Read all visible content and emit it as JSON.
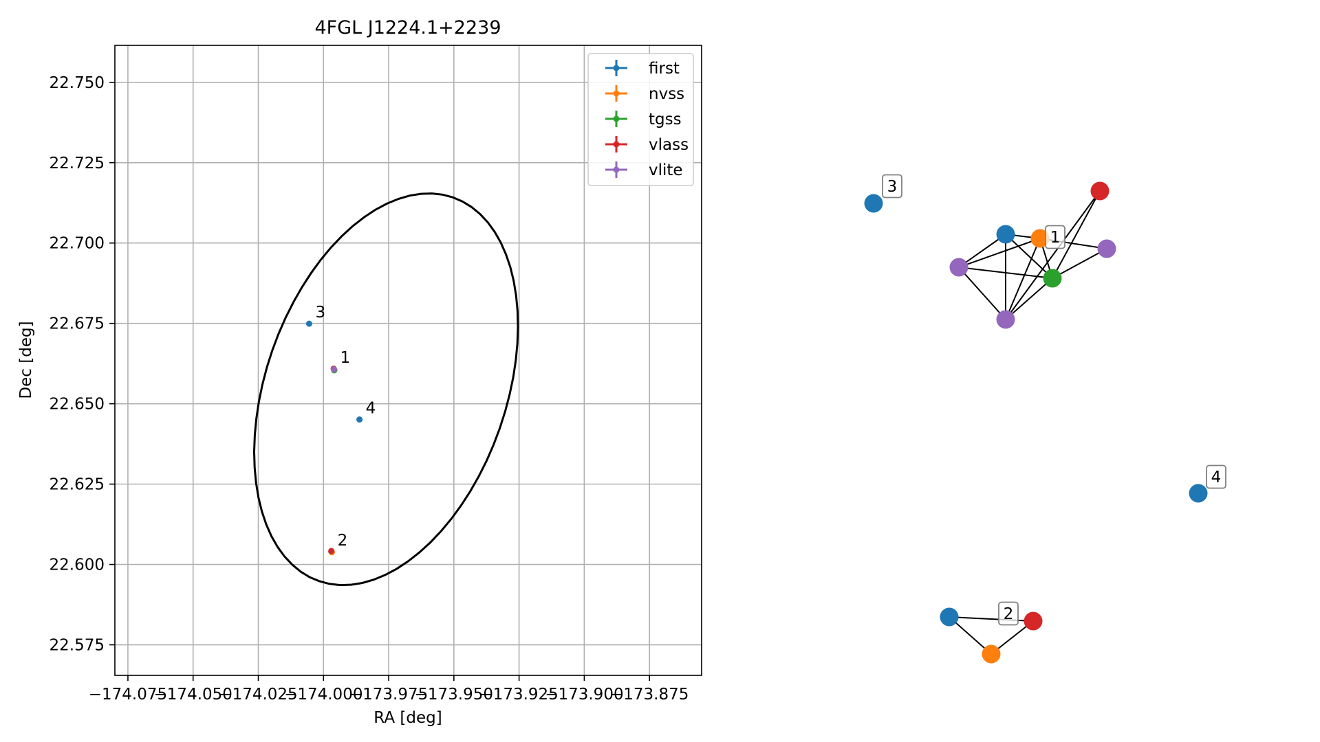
{
  "chart_data": [
    {
      "type": "scatter",
      "title": "4FGL J1224.1+2239",
      "xlabel": "RA [deg]",
      "ylabel": "Dec [deg]",
      "xlim": [
        -174.08,
        -173.855
      ],
      "ylim": [
        22.5655,
        22.7615
      ],
      "xticks": [
        -174.075,
        -174.05,
        -174.025,
        -174.0,
        -173.975,
        -173.95,
        -173.925,
        -173.9,
        -173.875
      ],
      "xtick_labels": [
        "−174.075",
        "−174.050",
        "−174.025",
        "−174.000",
        "−173.975",
        "−173.950",
        "−173.925",
        "−173.900",
        "−173.875"
      ],
      "yticks": [
        22.575,
        22.6,
        22.625,
        22.65,
        22.675,
        22.7,
        22.725,
        22.75
      ],
      "ytick_labels": [
        "22.575",
        "22.600",
        "22.625",
        "22.650",
        "22.675",
        "22.700",
        "22.725",
        "22.750"
      ],
      "grid": true,
      "legend_position": "top-right",
      "series": [
        {
          "name": "first",
          "color": "#1f77b4",
          "points": [
            {
              "x": -173.996,
              "y": 22.6608,
              "label": "1"
            },
            {
              "x": -174.0055,
              "y": 22.6749,
              "label": "3"
            },
            {
              "x": -173.9862,
              "y": 22.6451,
              "label": "4"
            },
            {
              "x": -173.997,
              "y": 22.604,
              "label": "2"
            }
          ]
        },
        {
          "name": "nvss",
          "color": "#ff7f0e",
          "points": [
            {
              "x": -173.9958,
              "y": 22.6605
            },
            {
              "x": -173.9968,
              "y": 22.6038
            }
          ]
        },
        {
          "name": "tgss",
          "color": "#2ca02c",
          "points": [
            {
              "x": -173.9959,
              "y": 22.6604
            }
          ]
        },
        {
          "name": "vlass",
          "color": "#d62728",
          "points": [
            {
              "x": -173.9961,
              "y": 22.6609
            },
            {
              "x": -173.997,
              "y": 22.6042
            }
          ]
        },
        {
          "name": "vlite",
          "color": "#9467bd",
          "points": [
            {
              "x": -173.996,
              "y": 22.6607
            }
          ]
        }
      ],
      "ellipse": {
        "center": [
          -173.976,
          22.6545
        ],
        "semi_major": 0.0655,
        "semi_minor": 0.0445,
        "angle_deg": 60,
        "color": "#000000"
      }
    },
    {
      "type": "network",
      "groups": [
        {
          "label": "1",
          "nodes": [
            {
              "id": "a1",
              "color": "#1f77b4"
            },
            {
              "id": "a2",
              "color": "#ff7f0e"
            },
            {
              "id": "a3",
              "color": "#d62728"
            },
            {
              "id": "a4",
              "color": "#9467bd"
            },
            {
              "id": "a5",
              "color": "#9467bd"
            },
            {
              "id": "a6",
              "color": "#2ca02c"
            },
            {
              "id": "a7",
              "color": "#9467bd"
            }
          ]
        },
        {
          "label": "2",
          "nodes": [
            {
              "id": "b1",
              "color": "#1f77b4"
            },
            {
              "id": "b2",
              "color": "#d62728"
            },
            {
              "id": "b3",
              "color": "#ff7f0e"
            }
          ]
        },
        {
          "label": "3",
          "nodes": [
            {
              "id": "c1",
              "color": "#1f77b4"
            }
          ]
        },
        {
          "label": "4",
          "nodes": [
            {
              "id": "d1",
              "color": "#1f77b4"
            }
          ]
        }
      ],
      "edges": [
        [
          "a1",
          "a2"
        ],
        [
          "a1",
          "a6"
        ],
        [
          "a1",
          "a7"
        ],
        [
          "a1",
          "a5"
        ],
        [
          "a2",
          "a4"
        ],
        [
          "a2",
          "a7"
        ],
        [
          "a2",
          "a6"
        ],
        [
          "a2",
          "a5"
        ],
        [
          "a3",
          "a7"
        ],
        [
          "a3",
          "a6"
        ],
        [
          "a4",
          "a6"
        ],
        [
          "a5",
          "a6"
        ],
        [
          "a5",
          "a7"
        ],
        [
          "a6",
          "a7"
        ],
        [
          "b1",
          "b2"
        ],
        [
          "b1",
          "b3"
        ],
        [
          "b2",
          "b3"
        ]
      ]
    }
  ]
}
